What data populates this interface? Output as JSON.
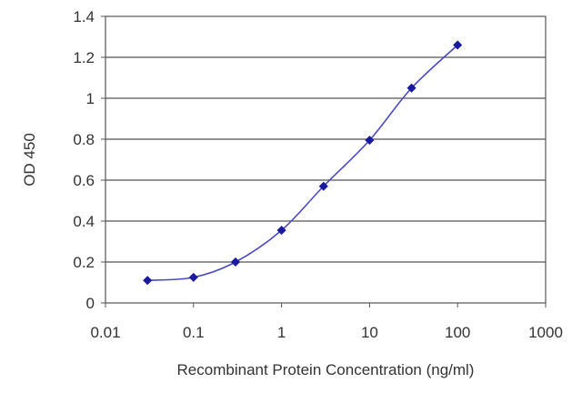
{
  "chart_data": {
    "type": "scatter",
    "title": "",
    "xlabel": "Recombinant Protein Concentration (ng/ml)",
    "ylabel": "OD 450",
    "x_scale": "log",
    "xlim": [
      0.01,
      1000
    ],
    "ylim": [
      0,
      1.4
    ],
    "x_ticks": [
      "0.01",
      "0.1",
      "1",
      "10",
      "100",
      "1000"
    ],
    "y_ticks": [
      "0",
      "0.2",
      "0.4",
      "0.6",
      "0.8",
      "1",
      "1.2",
      "1.4"
    ],
    "grid": "horizontal",
    "series": [
      {
        "x": [
          0.03,
          0.1,
          0.3,
          1,
          3,
          10,
          30,
          100
        ],
        "y": [
          0.11,
          0.125,
          0.2,
          0.355,
          0.57,
          0.795,
          1.05,
          1.26
        ],
        "style": "line with markers",
        "color": "#1a1aa0"
      }
    ]
  }
}
